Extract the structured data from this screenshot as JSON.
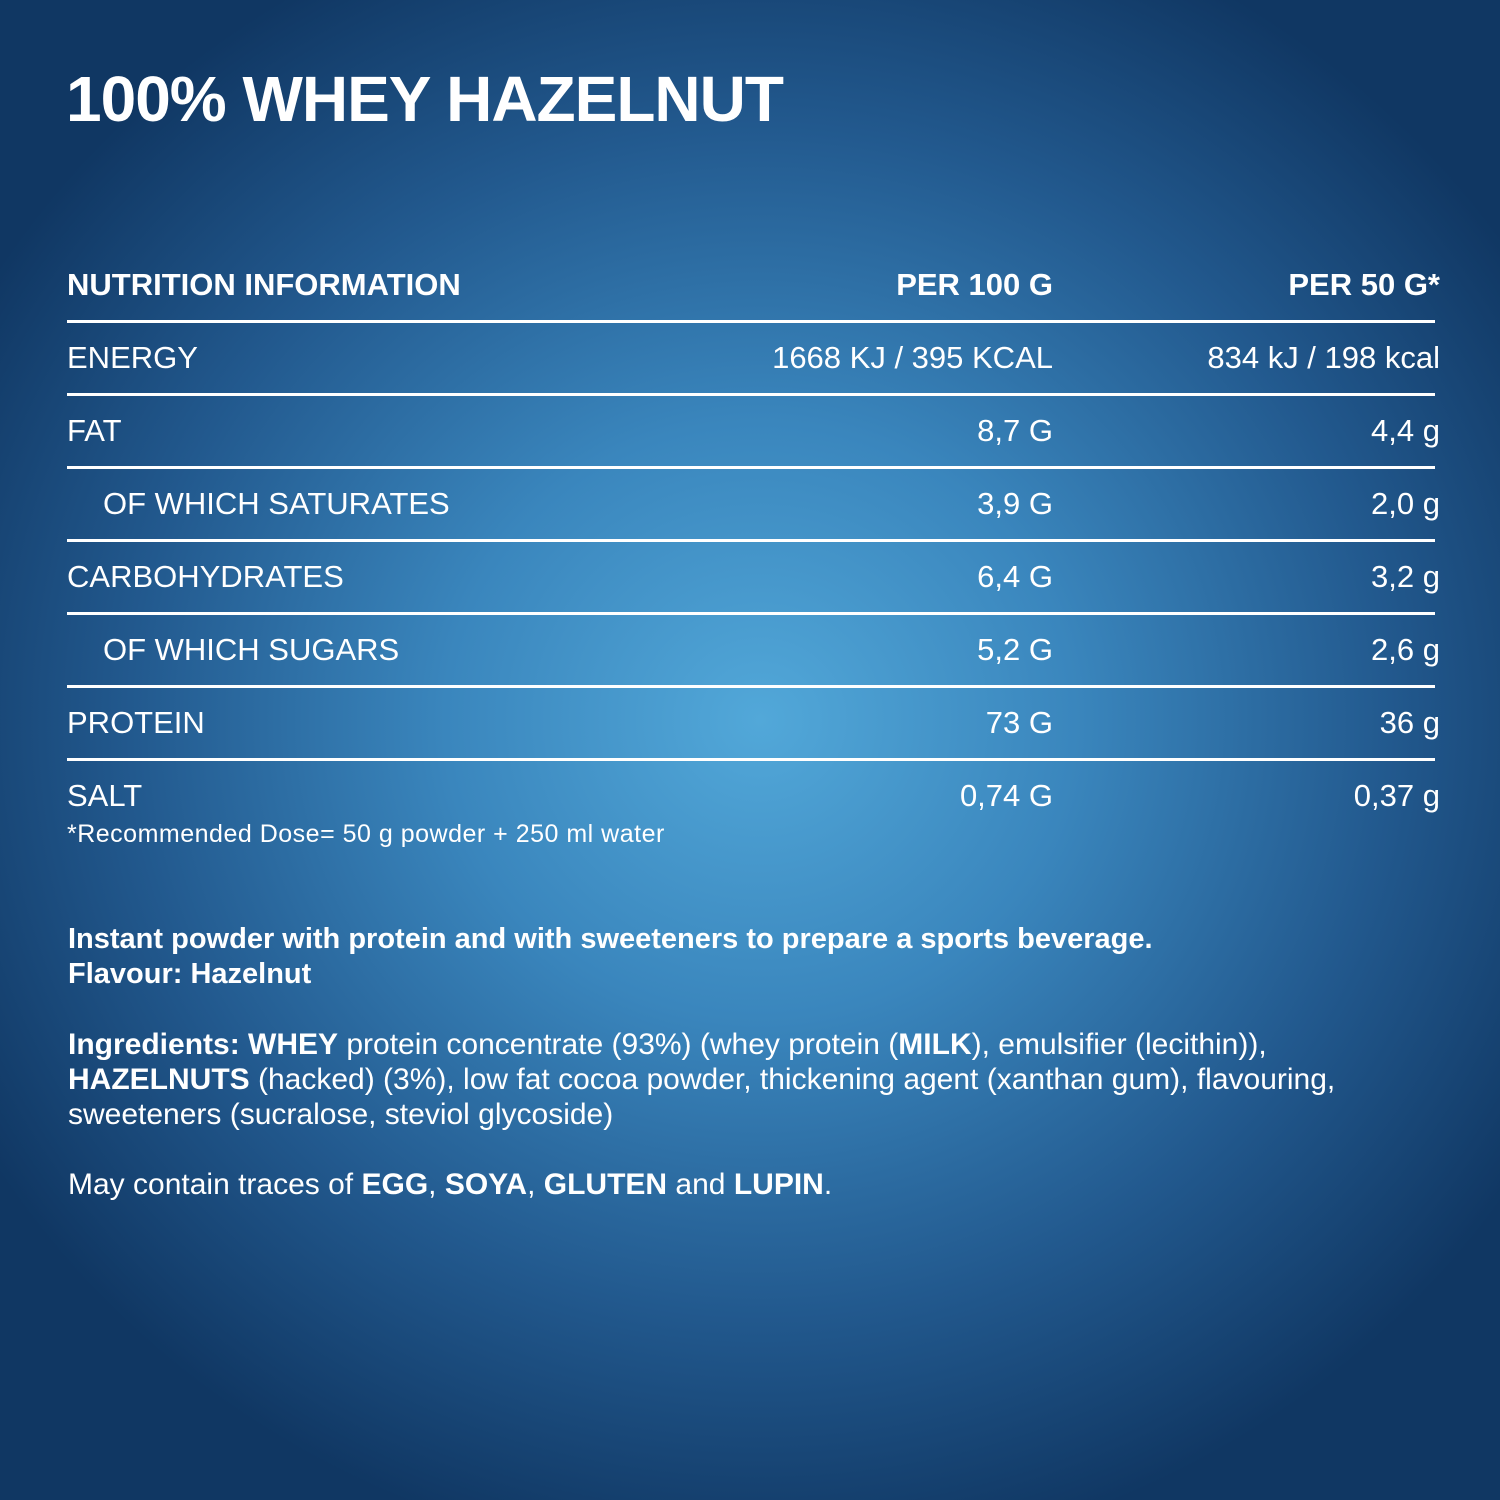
{
  "title": "100% WHEY HAZELNUT",
  "table": {
    "headers": [
      "NUTRITION INFORMATION",
      "PER 100 G",
      "PER 50 G*"
    ],
    "rows": [
      {
        "label": "ENERGY",
        "per100": "1668 KJ / 395 KCAL",
        "per50": "834 kJ / 198 kcal",
        "sub": false
      },
      {
        "label": "FAT",
        "per100": "8,7 G",
        "per50": "4,4 g",
        "sub": false
      },
      {
        "label": "OF WHICH SATURATES",
        "per100": "3,9 G",
        "per50": "2,0 g",
        "sub": true
      },
      {
        "label": "CARBOHYDRATES",
        "per100": "6,4 G",
        "per50": "3,2 g",
        "sub": false
      },
      {
        "label": "OF WHICH SUGARS",
        "per100": "5,2 G",
        "per50": "2,6 g",
        "sub": true
      },
      {
        "label": "PROTEIN",
        "per100": "73 G",
        "per50": "36 g",
        "sub": false
      },
      {
        "label": "SALT",
        "per100": "0,74 G",
        "per50": "0,37 g",
        "sub": false
      }
    ]
  },
  "footnote": "*Recommended Dose= 50 g powder + 250 ml water",
  "description": {
    "line1": "Instant powder with protein and with sweeteners to prepare a sports beverage.",
    "line2": "Flavour: Hazelnut"
  },
  "ingredients": [
    {
      "text": "Ingredients: WHEY",
      "bold": true
    },
    {
      "text": " protein concentrate (93%) (whey protein (",
      "bold": false
    },
    {
      "text": "MILK",
      "bold": true
    },
    {
      "text": "), emulsifier (lecithin)), ",
      "bold": false
    },
    {
      "text": "HAZELNUTS",
      "bold": true
    },
    {
      "text": " (hacked) (3%), low fat cocoa powder, thickening agent (xanthan gum), flavouring, sweeteners (sucralose, steviol glycoside)",
      "bold": false
    }
  ],
  "traces": [
    {
      "text": "May contain traces of ",
      "bold": false
    },
    {
      "text": "EGG",
      "bold": true
    },
    {
      "text": ", ",
      "bold": false
    },
    {
      "text": "SOYA",
      "bold": true
    },
    {
      "text": ", ",
      "bold": false
    },
    {
      "text": "GLUTEN",
      "bold": true
    },
    {
      "text": " and ",
      "bold": false
    },
    {
      "text": "LUPIN",
      "bold": true
    },
    {
      "text": ".",
      "bold": false
    }
  ],
  "colors": {
    "background_center": "#52a8d9",
    "background_edge": "#103763",
    "text": "#ffffff"
  }
}
